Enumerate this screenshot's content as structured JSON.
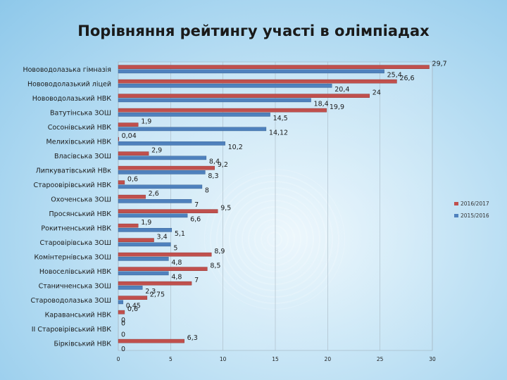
{
  "chart_data": {
    "type": "bar",
    "orientation": "horizontal",
    "title": "Порівняння рейтингу участі в олімпіадах",
    "categories": [
      "Нововодолазька гімназія",
      "Нововодолазький ліцей",
      "Нововодолазький НВК",
      "Ватутінська ЗОШ",
      "Сосонівський НВК",
      "Мелихівський НВК",
      "Власівська ЗОШ",
      "Липкуватівський НВк",
      "Староовірівський НВК",
      "Охоченська ЗОШ",
      "Просянський НВК",
      "Рокитненський НВК",
      "Старовірівська ЗОШ",
      "Комінтернівська ЗОШ",
      "Новоселівський НВК",
      "Станичненська ЗОШ",
      "Староводолазька ЗОШ",
      "Караванський НВК",
      "ІІ Старовірівський НВК",
      "Бірківський НВК"
    ],
    "series": [
      {
        "name": "2016/2017",
        "color": "#c0504d",
        "values": [
          29.7,
          26.6,
          24,
          19.9,
          1.9,
          0.04,
          2.9,
          9.2,
          0.6,
          2.6,
          9.5,
          1.9,
          3.4,
          8.9,
          8.5,
          7,
          2.75,
          0.6,
          0,
          6.3
        ],
        "labels": [
          "29,7",
          "26,6",
          "24",
          "19,9",
          "1,9",
          "0,04",
          "2,9",
          "9,2",
          "0,6",
          "2,6",
          "9,5",
          "1,9",
          "3,4",
          "8,9",
          "8,5",
          "7",
          "2,75",
          "0,6",
          "0",
          "6,3"
        ]
      },
      {
        "name": "2015/2016",
        "color": "#4f81bd",
        "values": [
          25.4,
          20.4,
          18.4,
          14.5,
          14.12,
          10.2,
          8.4,
          8.3,
          8,
          7,
          6.6,
          5.1,
          5,
          4.8,
          4.8,
          2.3,
          0.45,
          0,
          0,
          0
        ],
        "labels": [
          "25,4",
          "20,4",
          "18,4",
          "14,5",
          "14,12",
          "10,2",
          "8,4",
          "8,3",
          "8",
          "7",
          "6,6",
          "5,1",
          "5",
          "4,8",
          "4,8",
          "2,3",
          "0,45",
          "0",
          "0",
          "0"
        ]
      }
    ],
    "xlim": [
      0,
      30
    ],
    "xticks": [
      0,
      5,
      10,
      15,
      20,
      25,
      30
    ],
    "grid": true,
    "legend_position": "right"
  }
}
